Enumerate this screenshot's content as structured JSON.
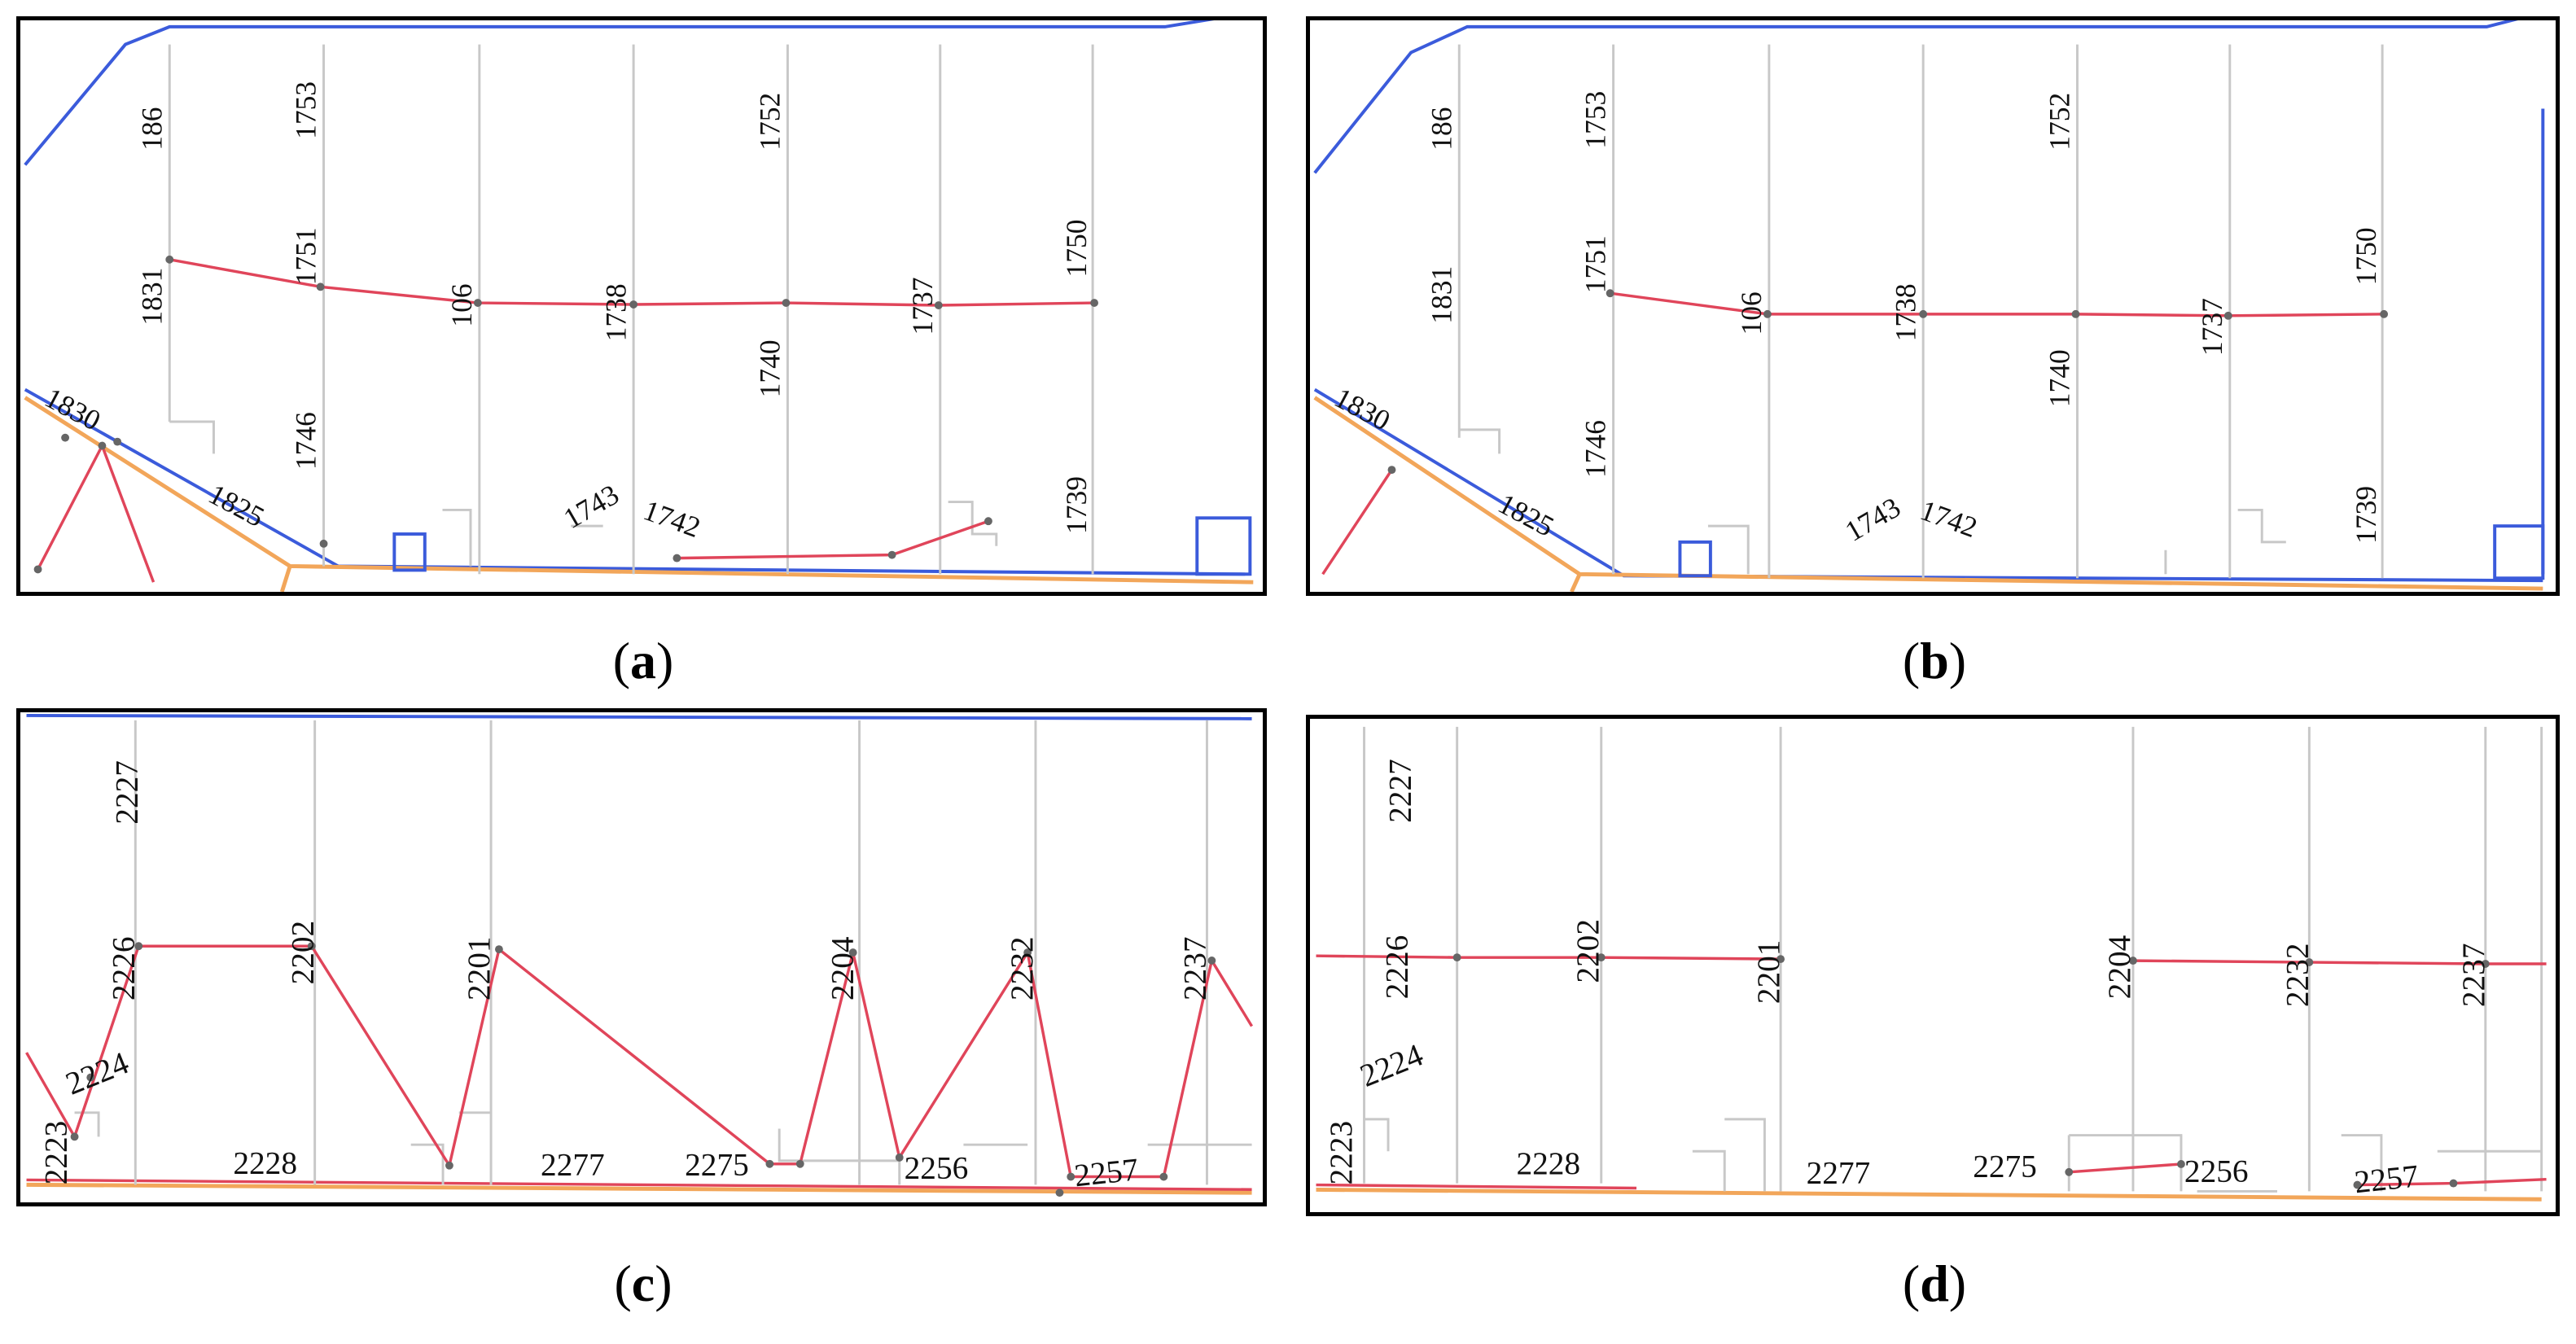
{
  "panels": [
    {
      "caption": "a",
      "labels": [
        "186",
        "1753",
        "1752",
        "1831",
        "1751",
        "106",
        "1738",
        "1737",
        "1750",
        "1740",
        "1830",
        "1746",
        "1825",
        "1743",
        "1742",
        "1739"
      ]
    },
    {
      "caption": "b",
      "labels": [
        "186",
        "1753",
        "1752",
        "1831",
        "1751",
        "106",
        "1738",
        "1737",
        "1750",
        "1740",
        "1830",
        "1746",
        "1825",
        "1743",
        "1742",
        "1739"
      ]
    },
    {
      "caption": "c",
      "labels": [
        "2227",
        "2226",
        "2202",
        "2201",
        "2204",
        "2232",
        "2237",
        "2224",
        "2223",
        "2228",
        "2277",
        "2275",
        "2256",
        "2257"
      ]
    },
    {
      "caption": "d",
      "labels": [
        "2227",
        "2226",
        "2202",
        "2201",
        "2204",
        "2232",
        "2237",
        "2224",
        "2223",
        "2228",
        "2277",
        "2275",
        "2256",
        "2257"
      ]
    }
  ],
  "colors": {
    "road": "#3b5bdb",
    "route": "#e0455a",
    "curb": "#f2a65a",
    "parcel": "#c8c8c8",
    "node": "#666666"
  }
}
